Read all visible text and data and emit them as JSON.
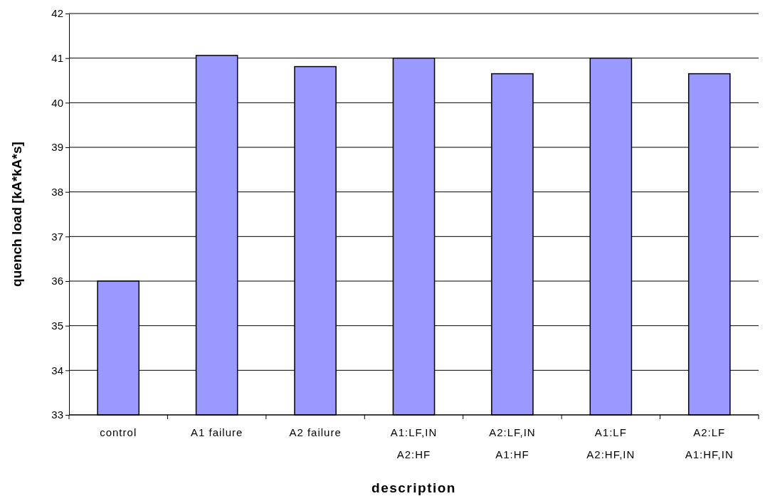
{
  "chart_data": {
    "type": "bar",
    "xlabel": "description",
    "ylabel": "quench load [kA*kA*s]",
    "categories": [
      "control",
      "A1 failure",
      "A2 failure",
      "A1:LF,IN\nA2:HF",
      "A2:LF,IN\nA1:HF",
      "A1:LF\nA2:HF,IN",
      "A2:LF\nA1:HF,IN"
    ],
    "values": [
      36,
      41.06,
      40.81,
      41.0,
      40.65,
      41.0,
      40.65
    ],
    "color": "#9999ff",
    "ylim": [
      33,
      42
    ],
    "yticks": [
      33,
      34,
      35,
      36,
      37,
      38,
      39,
      40,
      41,
      42
    ],
    "grid": "y"
  }
}
